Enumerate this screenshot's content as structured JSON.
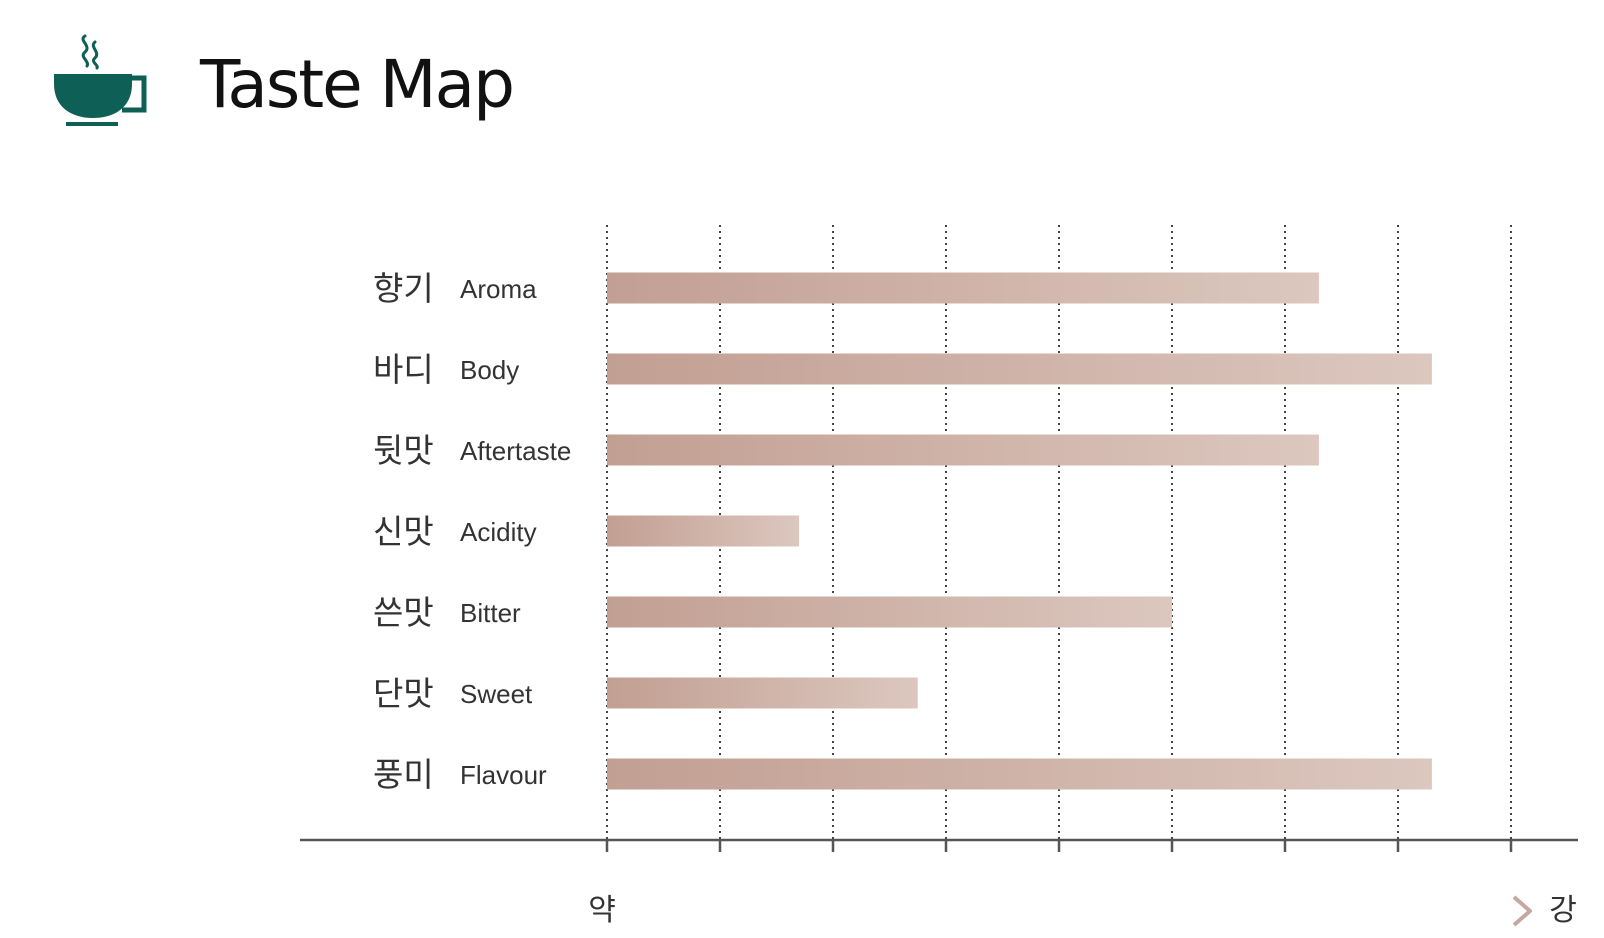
{
  "header": {
    "title": "Taste Map",
    "icon": "coffee-cup-icon",
    "icon_color": "#0e5f55"
  },
  "chart_data": {
    "type": "bar",
    "orientation": "horizontal",
    "title": "Taste Map",
    "categories": [
      {
        "ko": "향기",
        "en": "Aroma"
      },
      {
        "ko": "바디",
        "en": "Body"
      },
      {
        "ko": "뒷맛",
        "en": "Aftertaste"
      },
      {
        "ko": "신맛",
        "en": "Acidity"
      },
      {
        "ko": "쓴맛",
        "en": "Bitter"
      },
      {
        "ko": "단맛",
        "en": "Sweet"
      },
      {
        "ko": "풍미",
        "en": "Flavour"
      }
    ],
    "values": [
      6.3,
      7.3,
      6.3,
      1.7,
      5.0,
      2.75,
      7.3
    ],
    "xlim": [
      0,
      8
    ],
    "grid": true,
    "scale": {
      "low": "약",
      "high": "강"
    },
    "bar_color_start": "#c29f92",
    "bar_color_end": "#dcc7bf"
  }
}
